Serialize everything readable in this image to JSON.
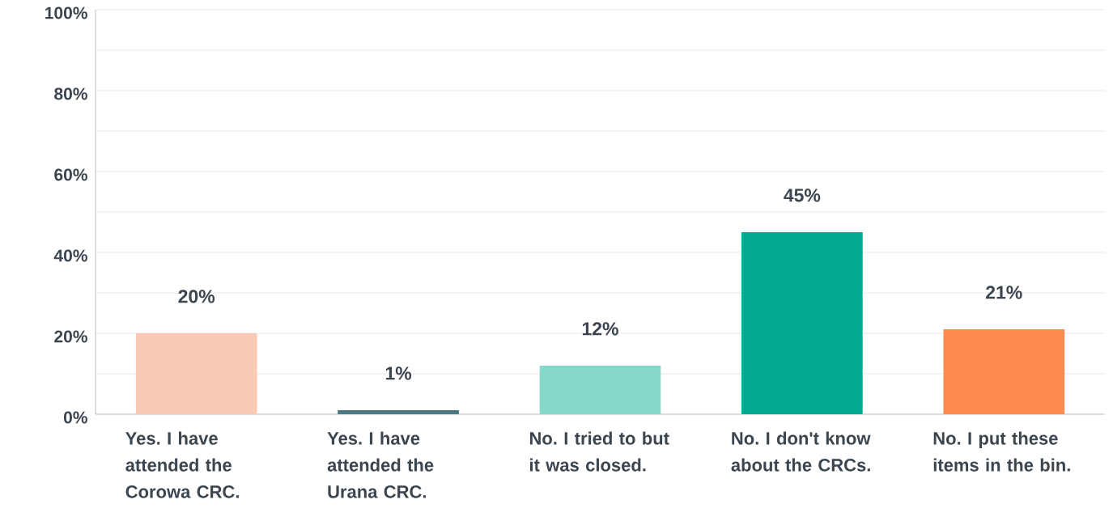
{
  "chart_data": {
    "type": "bar",
    "categories": [
      "Yes. I have attended the Corowa CRC.",
      "Yes. I have attended the Urana CRC.",
      "No. I tried to but it was closed.",
      "No. I don't know about the CRCs.",
      "No. I put these items in the bin."
    ],
    "values": [
      20,
      1,
      12,
      45,
      21
    ],
    "colors": [
      "#f9cbb4",
      "#4b7a85",
      "#84d9cb",
      "#05aa93",
      "#fe8b50"
    ],
    "value_labels": [
      "20%",
      "1%",
      "12%",
      "45%",
      "21%"
    ],
    "ylim": [
      0,
      100
    ],
    "yticks": [
      {
        "value": 0,
        "label": "0%"
      },
      {
        "value": 10,
        "label": null
      },
      {
        "value": 20,
        "label": "20%"
      },
      {
        "value": 30,
        "label": null
      },
      {
        "value": 40,
        "label": "40%"
      },
      {
        "value": 50,
        "label": null
      },
      {
        "value": 60,
        "label": "60%"
      },
      {
        "value": 70,
        "label": null
      },
      {
        "value": 80,
        "label": "80%"
      },
      {
        "value": 90,
        "label": null
      },
      {
        "value": 100,
        "label": "100%"
      }
    ],
    "grid": "y"
  }
}
